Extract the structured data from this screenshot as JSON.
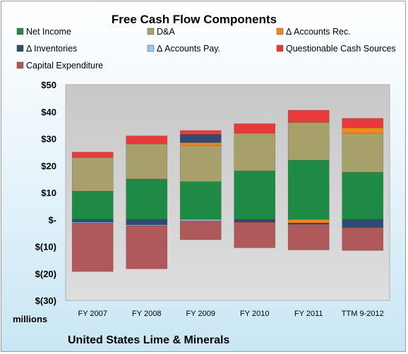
{
  "chart_data": {
    "type": "bar",
    "stacked": true,
    "title": "Free Cash Flow Components",
    "categories": [
      "FY 2007",
      "FY 2008",
      "FY 2009",
      "FY 2010",
      "FY 2011",
      "TTM 9-2012"
    ],
    "ylabel": "",
    "xlabel": "",
    "ylim": [
      -30,
      50
    ],
    "yticks": [
      "$(30)",
      "$(20)",
      "$(10)",
      "$-",
      "$10",
      "$20",
      "$30",
      "$40",
      "$50"
    ],
    "grid": false,
    "legend_position": "top",
    "unit_label": "millions",
    "footer": "United States Lime & Minerals",
    "series": [
      {
        "name": "Net Income",
        "color": "#1e8a45",
        "values": [
          10.5,
          15.0,
          14.0,
          18.0,
          22.0,
          17.5
        ]
      },
      {
        "name": "D&A",
        "color": "#a7a06a",
        "values": [
          12.5,
          13.0,
          13.5,
          14.0,
          14.0,
          14.5
        ]
      },
      {
        "name": "Δ Accounts Rec.",
        "color": "#f08a1e",
        "values": [
          0,
          0,
          1.0,
          0,
          -1.3,
          2.0
        ]
      },
      {
        "name": "Δ Inventories",
        "color": "#2f4a73",
        "values": [
          -1.0,
          -2.0,
          3.0,
          -1.0,
          -0.5,
          -3.0
        ]
      },
      {
        "name": "Δ Accounts Pay.",
        "color": "#9dc3e6",
        "values": [
          -0.3,
          -0.3,
          -0.5,
          0,
          0,
          0
        ]
      },
      {
        "name": "Questionable Cash Sources",
        "color": "#e83a3a",
        "values": [
          2.0,
          3.0,
          1.5,
          3.5,
          4.5,
          3.5
        ]
      },
      {
        "name": "Capital Expenditure",
        "color": "#b0595a",
        "values": [
          -18.0,
          -16.0,
          -7.0,
          -9.5,
          -9.5,
          -8.5
        ]
      }
    ]
  }
}
